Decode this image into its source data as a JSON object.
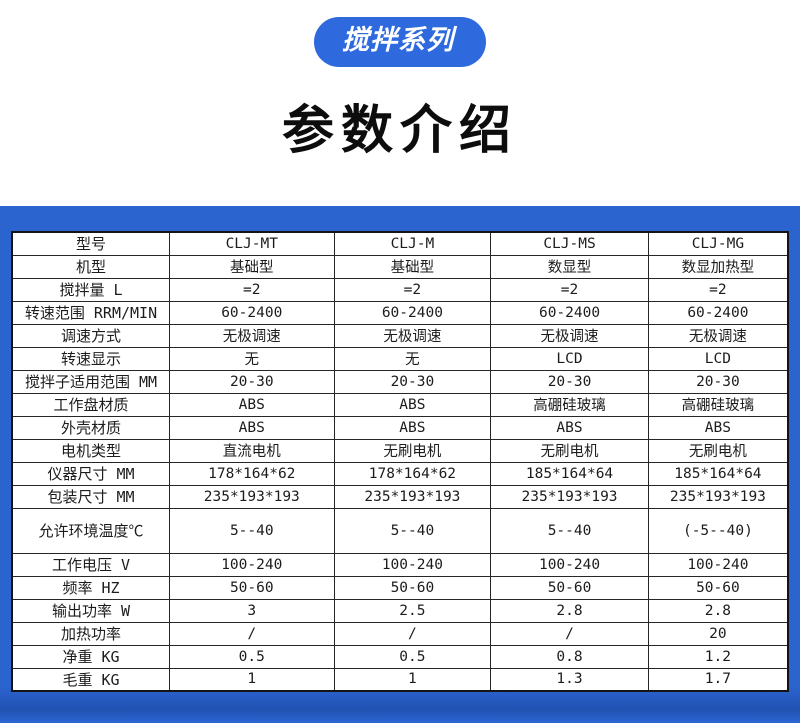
{
  "badge": {
    "label": "搅拌系列"
  },
  "title": "参数介绍",
  "colors": {
    "badge_blue": "#2e6ade",
    "panel_blue": "#2b63cf",
    "panel_blue_dark": "#2152b2",
    "table_border": "#141414"
  },
  "table": {
    "models": [
      "CLJ-MT",
      "CLJ-M",
      "CLJ-MS",
      "CLJ-MG"
    ],
    "rows": [
      {
        "label": "型号",
        "values": [
          "CLJ-MT",
          "CLJ-M",
          "CLJ-MS",
          "CLJ-MG"
        ]
      },
      {
        "label": "机型",
        "values": [
          "基础型",
          "基础型",
          "数显型",
          "数显加热型"
        ]
      },
      {
        "label": "搅拌量 L",
        "values": [
          "=2",
          "=2",
          "=2",
          "=2"
        ]
      },
      {
        "label": "转速范围 RRM/MIN",
        "values": [
          "60-2400",
          "60-2400",
          "60-2400",
          "60-2400"
        ]
      },
      {
        "label": "调速方式",
        "values": [
          "无极调速",
          "无极调速",
          "无极调速",
          "无极调速"
        ]
      },
      {
        "label": "转速显示",
        "values": [
          "无",
          "无",
          "LCD",
          "LCD"
        ]
      },
      {
        "label": "搅拌子适用范围 MM",
        "values": [
          "20-30",
          "20-30",
          "20-30",
          "20-30"
        ]
      },
      {
        "label": "工作盘材质",
        "values": [
          "ABS",
          "ABS",
          "高硼硅玻璃",
          "高硼硅玻璃"
        ]
      },
      {
        "label": "外壳材质",
        "values": [
          "ABS",
          "ABS",
          "ABS",
          "ABS"
        ]
      },
      {
        "label": "电机类型",
        "values": [
          "直流电机",
          "无刷电机",
          "无刷电机",
          "无刷电机"
        ]
      },
      {
        "label": "仪器尺寸 MM",
        "values": [
          "178*164*62",
          "178*164*62",
          "185*164*64",
          "185*164*64"
        ]
      },
      {
        "label": "包装尺寸 MM",
        "values": [
          "235*193*193",
          "235*193*193",
          "235*193*193",
          "235*193*193"
        ]
      },
      {
        "label": "允许环境温度℃",
        "values": [
          "5--40",
          "5--40",
          "5--40",
          "(-5--40)"
        ],
        "tall": true
      },
      {
        "label": "工作电压 V",
        "values": [
          "100-240",
          "100-240",
          "100-240",
          "100-240"
        ]
      },
      {
        "label": "频率 HZ",
        "values": [
          "50-60",
          "50-60",
          "50-60",
          "50-60"
        ]
      },
      {
        "label": "输出功率 W",
        "values": [
          "3",
          "2.5",
          "2.8",
          "2.8"
        ]
      },
      {
        "label": "加热功率",
        "values": [
          "/",
          "/",
          "/",
          "20"
        ]
      },
      {
        "label": "净重 KG",
        "values": [
          "0.5",
          "0.5",
          "0.8",
          "1.2"
        ]
      },
      {
        "label": "毛重 KG",
        "values": [
          "1",
          "1",
          "1.3",
          "1.7"
        ]
      }
    ]
  }
}
